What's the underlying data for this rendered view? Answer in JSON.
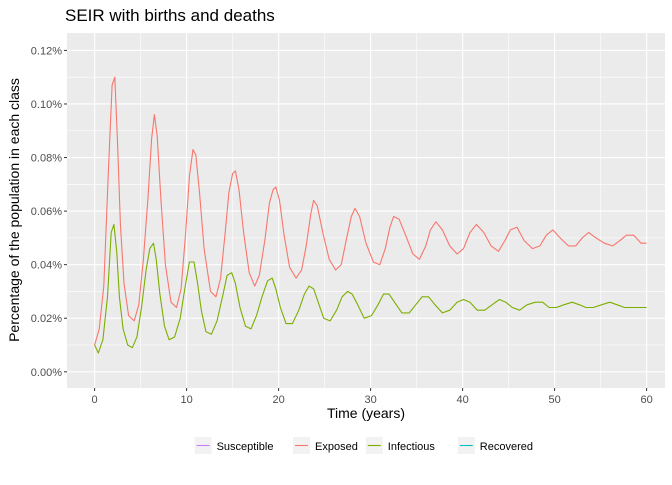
{
  "chart_data": {
    "type": "line",
    "title": "SEIR with births and deaths",
    "xlabel": "Time (years)",
    "ylabel": "Percentage of the population in each class",
    "xlim": [
      -3,
      62
    ],
    "ylim": [
      -6.05e-05,
      0.001265
    ],
    "x_ticks": [
      0,
      10,
      20,
      30,
      40,
      50,
      60
    ],
    "y_ticks": [
      0,
      0.0002,
      0.0004,
      0.0006,
      0.0008,
      0.001,
      0.0012
    ],
    "y_tick_labels": [
      "0.00%",
      "0.02%",
      "0.04%",
      "0.06%",
      "0.08%",
      "0.10%",
      "0.12%"
    ],
    "grid": true,
    "legend_position": "bottom",
    "series": [
      {
        "name": "Susceptible",
        "color": "#C77CFF",
        "x": [],
        "values": []
      },
      {
        "name": "Exposed",
        "color": "#F8766D",
        "x": [
          0,
          0.5,
          1.0,
          1.5,
          1.9,
          2.2,
          2.5,
          2.8,
          3.2,
          3.7,
          4.3,
          4.8,
          5.3,
          5.8,
          6.2,
          6.5,
          6.8,
          7.2,
          7.7,
          8.3,
          8.9,
          9.4,
          9.9,
          10.3,
          10.7,
          11.0,
          11.4,
          11.9,
          12.6,
          13.2,
          13.7,
          14.2,
          14.6,
          15.0,
          15.3,
          15.7,
          16.2,
          16.8,
          17.4,
          17.9,
          18.5,
          19.0,
          19.4,
          19.7,
          20.1,
          20.6,
          21.2,
          21.9,
          22.5,
          23.0,
          23.5,
          23.8,
          24.2,
          24.8,
          25.5,
          26.2,
          26.8,
          27.4,
          27.9,
          28.3,
          28.8,
          29.5,
          30.3,
          31.0,
          31.6,
          32.1,
          32.5,
          33.1,
          33.8,
          34.6,
          35.3,
          36.0,
          36.5,
          37.1,
          37.8,
          38.6,
          39.4,
          40.1,
          40.8,
          41.5,
          42.3,
          43.1,
          43.9,
          44.6,
          45.2,
          45.9,
          46.7,
          47.6,
          48.4,
          49.1,
          49.8,
          50.6,
          51.5,
          52.3,
          53.0,
          53.7,
          54.5,
          55.4,
          56.3,
          57.1,
          57.8,
          58.6,
          59.4,
          60.0
        ],
        "values": [
          0.0001,
          0.00016,
          0.00032,
          0.00075,
          0.00107,
          0.0011,
          0.00085,
          0.00055,
          0.00033,
          0.00021,
          0.00019,
          0.00025,
          0.00042,
          0.00065,
          0.00087,
          0.00096,
          0.00088,
          0.00065,
          0.0004,
          0.00026,
          0.00024,
          0.00031,
          0.00052,
          0.00073,
          0.00083,
          0.00081,
          0.00067,
          0.00046,
          0.0003,
          0.00028,
          0.00035,
          0.00052,
          0.00067,
          0.00074,
          0.00075,
          0.00068,
          0.00052,
          0.00037,
          0.00032,
          0.00036,
          0.00049,
          0.00063,
          0.00068,
          0.00069,
          0.00064,
          0.00051,
          0.00039,
          0.00035,
          0.00038,
          0.00047,
          0.00059,
          0.00064,
          0.00062,
          0.00052,
          0.00042,
          0.00038,
          0.0004,
          0.0005,
          0.00058,
          0.00061,
          0.00058,
          0.00048,
          0.00041,
          0.0004,
          0.00046,
          0.00054,
          0.00058,
          0.00057,
          0.00051,
          0.00044,
          0.00042,
          0.00047,
          0.00053,
          0.00056,
          0.00053,
          0.00047,
          0.00044,
          0.00046,
          0.00052,
          0.00055,
          0.00052,
          0.00047,
          0.00045,
          0.00049,
          0.00053,
          0.00054,
          0.00049,
          0.00046,
          0.00047,
          0.00051,
          0.00053,
          0.0005,
          0.00047,
          0.00047,
          0.0005,
          0.00052,
          0.0005,
          0.00048,
          0.00047,
          0.00049,
          0.00051,
          0.00051,
          0.00048,
          0.00048
        ]
      },
      {
        "name": "Infectious",
        "color": "#7CAE00",
        "x": [
          0,
          0.4,
          0.9,
          1.4,
          1.8,
          2.1,
          2.4,
          2.7,
          3.1,
          3.6,
          4.1,
          4.6,
          5.1,
          5.6,
          6.0,
          6.4,
          6.7,
          7.1,
          7.6,
          8.1,
          8.7,
          9.3,
          9.8,
          10.3,
          10.8,
          11.2,
          11.6,
          12.1,
          12.7,
          13.3,
          13.9,
          14.4,
          14.9,
          15.3,
          15.8,
          16.4,
          17.0,
          17.6,
          18.2,
          18.8,
          19.3,
          19.7,
          20.2,
          20.8,
          21.5,
          22.2,
          22.8,
          23.3,
          23.8,
          24.3,
          24.9,
          25.6,
          26.3,
          26.9,
          27.5,
          28.0,
          28.6,
          29.3,
          30.1,
          30.8,
          31.4,
          32.0,
          32.6,
          33.4,
          34.2,
          34.9,
          35.6,
          36.3,
          37.0,
          37.8,
          38.6,
          39.4,
          40.1,
          40.8,
          41.6,
          42.4,
          43.2,
          44.0,
          44.7,
          45.4,
          46.2,
          47.0,
          47.9,
          48.7,
          49.4,
          50.2,
          51.0,
          51.9,
          52.7,
          53.4,
          54.2,
          55.1,
          56.0,
          56.8,
          57.6,
          58.4,
          59.2,
          60.0
        ],
        "values": [
          0.0001,
          7e-05,
          0.00012,
          0.00028,
          0.00052,
          0.00055,
          0.00045,
          0.00028,
          0.00016,
          0.0001,
          9e-05,
          0.00013,
          0.00024,
          0.00038,
          0.00046,
          0.00048,
          0.00042,
          0.00029,
          0.00017,
          0.00012,
          0.00013,
          0.0002,
          0.00031,
          0.00041,
          0.00041,
          0.00033,
          0.00023,
          0.00015,
          0.00014,
          0.00019,
          0.00028,
          0.00036,
          0.00037,
          0.00033,
          0.00024,
          0.00017,
          0.00016,
          0.00021,
          0.00028,
          0.00034,
          0.00035,
          0.00031,
          0.00024,
          0.00018,
          0.00018,
          0.00023,
          0.00029,
          0.00032,
          0.00031,
          0.00026,
          0.0002,
          0.00019,
          0.00023,
          0.00028,
          0.0003,
          0.00029,
          0.00025,
          0.0002,
          0.00021,
          0.00025,
          0.00029,
          0.00029,
          0.00026,
          0.00022,
          0.00022,
          0.00025,
          0.00028,
          0.00028,
          0.00025,
          0.00022,
          0.00023,
          0.00026,
          0.00027,
          0.00026,
          0.00023,
          0.00023,
          0.00025,
          0.00027,
          0.00026,
          0.00024,
          0.00023,
          0.00025,
          0.00026,
          0.00026,
          0.00024,
          0.00024,
          0.00025,
          0.00026,
          0.00025,
          0.00024,
          0.00024,
          0.00025,
          0.00026,
          0.00025,
          0.00024,
          0.00024,
          0.00024,
          0.00024
        ]
      },
      {
        "name": "Recovered",
        "color": "#00BFC4",
        "x": [],
        "values": []
      }
    ]
  }
}
